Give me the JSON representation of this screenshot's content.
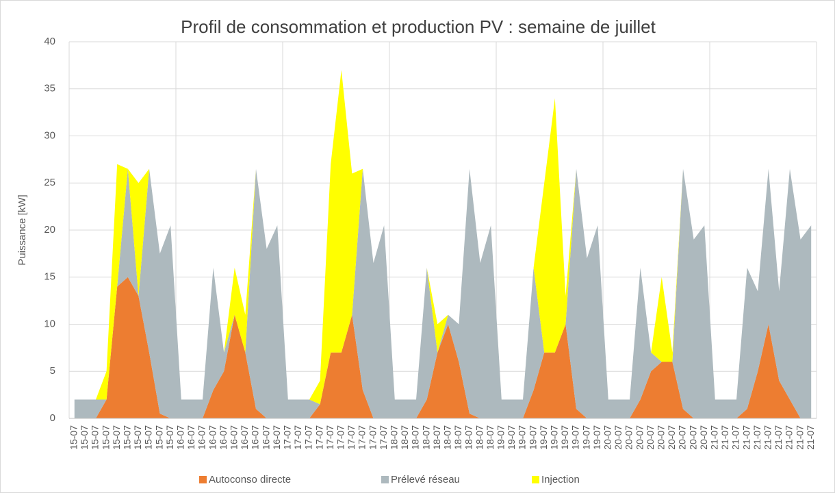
{
  "chart_data": {
    "type": "stacked-area",
    "title": "Profil de consommation et production PV : semaine de juillet",
    "y_label": "Puissance [kW]",
    "categories": [
      "15-07",
      "15-07",
      "15-07",
      "15-07",
      "15-07",
      "15-07",
      "15-07",
      "15-07",
      "15-07",
      "15-07",
      "16-07",
      "16-07",
      "16-07",
      "16-07",
      "16-07",
      "16-07",
      "16-07",
      "16-07",
      "16-07",
      "16-07",
      "17-07",
      "17-07",
      "17-07",
      "17-07",
      "17-07",
      "17-07",
      "17-07",
      "17-07",
      "17-07",
      "17-07",
      "18-07",
      "18-07",
      "18-07",
      "18-07",
      "18-07",
      "18-07",
      "18-07",
      "18-07",
      "18-07",
      "18-07",
      "19-07",
      "19-07",
      "19-07",
      "19-07",
      "19-07",
      "19-07",
      "19-07",
      "19-07",
      "19-07",
      "19-07",
      "20-07",
      "20-07",
      "20-07",
      "20-07",
      "20-07",
      "20-07",
      "20-07",
      "20-07",
      "20-07",
      "20-07",
      "21-07",
      "21-07",
      "21-07",
      "21-07",
      "21-07",
      "21-07",
      "21-07",
      "21-07",
      "21-07",
      "21-07"
    ],
    "series": [
      {
        "name": "Autoconso directe",
        "color": "#ed7d31",
        "values": [
          0,
          0,
          0,
          2,
          14,
          15,
          13,
          7,
          0.5,
          0,
          0,
          0,
          0,
          3,
          5,
          11,
          7,
          1,
          0,
          0,
          0,
          0,
          0,
          1.5,
          7,
          7,
          11,
          3,
          0,
          0,
          0,
          0,
          0,
          2,
          7,
          10,
          6,
          0.5,
          0,
          0,
          0,
          0,
          0,
          3,
          7,
          7,
          10,
          1,
          0,
          0,
          0,
          0,
          0,
          2,
          5,
          6,
          6,
          1,
          0,
          0,
          0,
          0,
          0,
          1,
          5,
          10,
          4,
          2,
          0,
          0
        ]
      },
      {
        "name": "Prélevé réseau",
        "color": "#adb9be",
        "values": [
          2,
          2,
          2,
          0,
          0,
          11.5,
          0,
          19.5,
          17,
          20.5,
          2,
          2,
          2,
          13,
          2,
          0,
          0,
          25.5,
          18,
          20.5,
          2,
          2,
          2,
          0,
          0,
          0,
          0,
          23.5,
          16.5,
          20.5,
          2,
          2,
          2,
          14,
          0,
          1,
          4,
          26,
          16.5,
          20.5,
          2,
          2,
          2,
          13,
          0,
          0,
          0,
          25.5,
          17,
          20.5,
          2,
          2,
          2,
          14,
          2,
          0,
          0,
          25.5,
          19,
          20.5,
          2,
          2,
          2,
          15,
          8.5,
          16.5,
          9.5,
          24.5,
          19,
          20.5
        ]
      },
      {
        "name": "Injection",
        "color": "#ffff00",
        "values": [
          0,
          0,
          0,
          3,
          13,
          0,
          12,
          0,
          0,
          0,
          0,
          0,
          0,
          0,
          0,
          5,
          4,
          0,
          0,
          0,
          0,
          0,
          0,
          2.5,
          20,
          30,
          15,
          0,
          0,
          0,
          0,
          0,
          0,
          0,
          3,
          0,
          0,
          0,
          0,
          0,
          0,
          0,
          0,
          0,
          18,
          27,
          3,
          0,
          0,
          0,
          0,
          0,
          0,
          0,
          0,
          9,
          1,
          0,
          0,
          0,
          0,
          0,
          0,
          0,
          0,
          0,
          0,
          0,
          0,
          0
        ]
      }
    ],
    "ylim": [
      0,
      40
    ],
    "yticks": [
      0,
      5,
      10,
      15,
      20,
      25,
      30,
      35,
      40
    ],
    "grid": true,
    "legend": "bottom"
  }
}
